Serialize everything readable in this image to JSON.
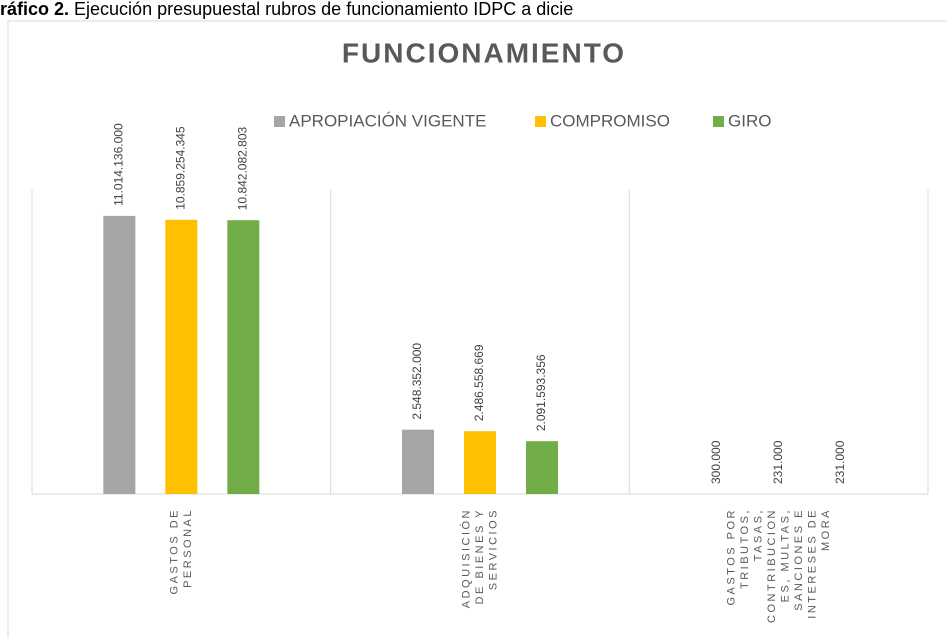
{
  "caption": {
    "label": "ráfico 2.",
    "text": "Ejecución presupuestal rubros de funcionamiento IDPC a dicie"
  },
  "chart_data": {
    "type": "bar",
    "title": "FUNCIONAMIENTO",
    "categories": [
      "GASTOS DE PERSONAL",
      "ADQUISICIÓN DE BIENES Y SERVICIOS",
      "GASTOS POR TRIBUTOS, TASAS, CONTRIBUCIONES, MULTAS, SANCIONES E INTERESES DE MORA"
    ],
    "series": [
      {
        "name": "APROPIACIÓN VIGENTE",
        "color": "#a5a5a5",
        "values": [
          11014136000,
          2548352000,
          300000
        ],
        "value_labels": [
          "11.014.136.000",
          "2.548.352.000",
          "300.000"
        ]
      },
      {
        "name": "COMPROMISO",
        "color": "#ffc000",
        "values": [
          10859254345,
          2486558669,
          231000
        ],
        "value_labels": [
          "10.859.254.345",
          "2.486.558.669",
          "231.000"
        ]
      },
      {
        "name": "GIRO",
        "color": "#70ad47",
        "values": [
          10842082803,
          2091593356,
          231000
        ],
        "value_labels": [
          "10.842.082.803",
          "2.091.593.356",
          "231.000"
        ]
      }
    ],
    "ylim": [
      0,
      12000000000
    ],
    "legend": "top"
  }
}
